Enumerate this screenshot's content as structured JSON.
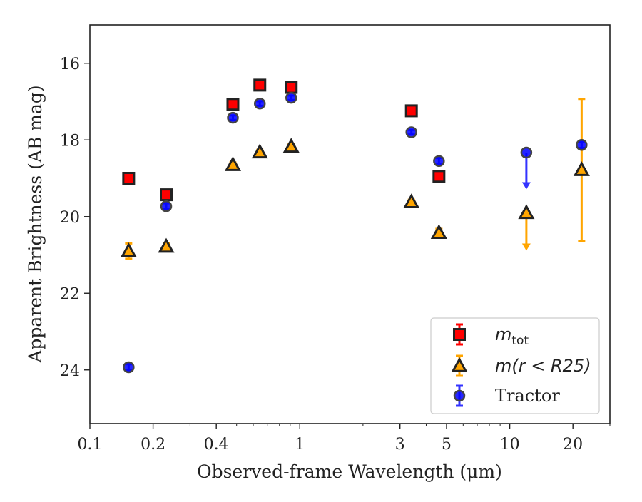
{
  "chart_data": {
    "type": "scatter",
    "title": "",
    "xlabel": "Observed-frame Wavelength (μm)",
    "ylabel": "Apparent Brightness (AB mag)",
    "xscale": "log",
    "xlim": [
      0.1,
      30
    ],
    "ylim": [
      25.4,
      15.0
    ],
    "y_inverted": true,
    "x_ticks": [
      {
        "value": 0.1,
        "label": "0.1"
      },
      {
        "value": 0.2,
        "label": "0.2"
      },
      {
        "value": 0.4,
        "label": "0.4"
      },
      {
        "value": 1,
        "label": "1"
      },
      {
        "value": 3,
        "label": "3"
      },
      {
        "value": 5,
        "label": "5"
      },
      {
        "value": 10,
        "label": "10"
      },
      {
        "value": 20,
        "label": "20"
      }
    ],
    "y_ticks": [
      {
        "value": 16,
        "label": "16"
      },
      {
        "value": 18,
        "label": "18"
      },
      {
        "value": 20,
        "label": "20"
      },
      {
        "value": 22,
        "label": "22"
      },
      {
        "value": 24,
        "label": "24"
      }
    ],
    "grid": false,
    "legend_position": "bottom-right",
    "series": [
      {
        "key": "mtot",
        "legend": {
          "base": "m",
          "sub": "tot"
        },
        "marker": "square",
        "color": "#ff0000",
        "edge": "#222222",
        "points": [
          {
            "x": 0.153,
            "y": 19.0,
            "err": 0.08
          },
          {
            "x": 0.231,
            "y": 19.43,
            "err": 0.08
          },
          {
            "x": 0.48,
            "y": 17.07,
            "err": 0.06
          },
          {
            "x": 0.645,
            "y": 16.57,
            "err": 0.06
          },
          {
            "x": 0.91,
            "y": 16.63,
            "err": 0.06
          },
          {
            "x": 3.4,
            "y": 17.24,
            "err": 0.06
          },
          {
            "x": 4.6,
            "y": 18.95,
            "err": 0.08
          }
        ]
      },
      {
        "key": "mr25",
        "legend": {
          "text": "m(r < R25)"
        },
        "marker": "triangle",
        "color": "#ffa500",
        "edge": "#222222",
        "points": [
          {
            "x": 0.153,
            "y": 20.9,
            "err": 0.2
          },
          {
            "x": 0.231,
            "y": 20.78,
            "err": 0.08
          },
          {
            "x": 0.48,
            "y": 18.65,
            "err": 0.06
          },
          {
            "x": 0.645,
            "y": 18.32,
            "err": 0.06
          },
          {
            "x": 0.91,
            "y": 18.17,
            "err": 0.06
          },
          {
            "x": 3.4,
            "y": 19.62,
            "err": 0.06
          },
          {
            "x": 4.6,
            "y": 20.42,
            "err": 0.1
          },
          {
            "x": 12.0,
            "y": 19.9,
            "upper_limit_to": 20.85
          },
          {
            "x": 22.0,
            "y": 18.78,
            "err_low": 1.85,
            "err_high": 1.85
          }
        ]
      },
      {
        "key": "tractor",
        "legend": {
          "text": "Tractor"
        },
        "marker": "circle",
        "color": "#0000ff",
        "edge": "#444444",
        "points": [
          {
            "x": 0.153,
            "y": 23.93,
            "err": 0.08
          },
          {
            "x": 0.231,
            "y": 19.73,
            "err": 0.08
          },
          {
            "x": 0.48,
            "y": 17.42,
            "err": 0.06
          },
          {
            "x": 0.645,
            "y": 17.05,
            "err": 0.06
          },
          {
            "x": 0.91,
            "y": 16.9,
            "err": 0.06
          },
          {
            "x": 3.4,
            "y": 17.8,
            "err": 0.06
          },
          {
            "x": 4.6,
            "y": 18.55,
            "err": 0.08
          },
          {
            "x": 12.0,
            "y": 18.33,
            "upper_limit_to": 19.25
          },
          {
            "x": 22.0,
            "y": 18.13,
            "err": 0.08
          }
        ]
      }
    ]
  }
}
